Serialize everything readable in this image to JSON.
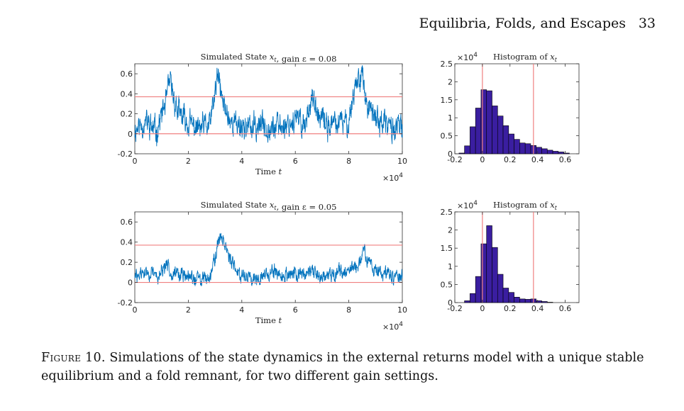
{
  "header": {
    "running_title": "Equilibria, Folds, and Escapes",
    "page_number": "33"
  },
  "caption": {
    "label": "Figure 10.",
    "text": "Simulations of the state dynamics in the external returns model with a unique stable equilibrium and a fold remnant, for two different gain settings."
  },
  "colors": {
    "trace": "#0072BD",
    "reference": "#F08080",
    "hist_fill": "#3A1EA0",
    "axes": "#333333"
  },
  "chart_data": [
    {
      "type": "line",
      "title": "Simulated State x_t, gain ε = 0.08",
      "xlabel": "Time t",
      "x_exponent": "×10^4",
      "xlim": [
        0,
        10
      ],
      "ylim": [
        -0.2,
        0.7
      ],
      "xticks": [
        "0",
        "2",
        "4",
        "6",
        "8",
        "10"
      ],
      "yticks": [
        "-0.2",
        "0",
        "0.2",
        "0.4",
        "0.6"
      ],
      "reference_lines_y": [
        0.0,
        0.37
      ],
      "series": [
        {
          "name": "x_t",
          "x": [
            0,
            0.4,
            0.8,
            1.2,
            1.3,
            1.6,
            2.0,
            2.4,
            2.8,
            3.0,
            3.1,
            3.3,
            3.6,
            4.0,
            4.4,
            4.8,
            5.2,
            5.6,
            6.0,
            6.4,
            6.6,
            6.8,
            7.2,
            7.6,
            8.0,
            8.2,
            8.5,
            8.6,
            8.8,
            9.2,
            9.6,
            10.0
          ],
          "values": [
            0.05,
            0.12,
            0.02,
            0.35,
            0.52,
            0.22,
            0.1,
            0.05,
            0.08,
            0.4,
            0.58,
            0.3,
            0.12,
            0.08,
            0.05,
            0.1,
            0.06,
            0.09,
            0.14,
            0.1,
            0.4,
            0.18,
            0.08,
            0.1,
            0.12,
            0.45,
            0.65,
            0.35,
            0.2,
            0.12,
            0.06,
            0.05
          ],
          "noise_amplitude": 0.12
        }
      ]
    },
    {
      "type": "bar",
      "title": "Histogram of x_t",
      "y_exponent": "×10^4",
      "xlim": [
        -0.2,
        0.7
      ],
      "ylim": [
        0,
        2.5
      ],
      "xticks": [
        "-0.2",
        "0",
        "0.2",
        "0.4",
        "0.6"
      ],
      "yticks": [
        "0",
        "0.5",
        "1",
        "1.5",
        "2",
        "2.5"
      ],
      "reference_lines_x": [
        0.0,
        0.37
      ],
      "bin_edges": [
        -0.17,
        -0.13,
        -0.09,
        -0.05,
        -0.01,
        0.03,
        0.07,
        0.11,
        0.15,
        0.19,
        0.23,
        0.27,
        0.31,
        0.35,
        0.39,
        0.43,
        0.47,
        0.51,
        0.55,
        0.59,
        0.63
      ],
      "values": [
        0.02,
        0.22,
        0.75,
        1.27,
        1.78,
        1.75,
        1.33,
        1.05,
        0.78,
        0.55,
        0.4,
        0.3,
        0.28,
        0.23,
        0.18,
        0.14,
        0.1,
        0.07,
        0.05,
        0.02
      ]
    },
    {
      "type": "line",
      "title": "Simulated State x_t, gain ε = 0.05",
      "xlabel": "Time t",
      "x_exponent": "×10^4",
      "xlim": [
        0,
        10
      ],
      "ylim": [
        -0.2,
        0.7
      ],
      "xticks": [
        "0",
        "2",
        "4",
        "6",
        "8",
        "10"
      ],
      "yticks": [
        "-0.2",
        "0",
        "0.2",
        "0.4",
        "0.6"
      ],
      "reference_lines_y": [
        0.0,
        0.37
      ],
      "series": [
        {
          "name": "x_t",
          "x": [
            0,
            0.4,
            0.8,
            1.2,
            1.6,
            2.0,
            2.4,
            2.8,
            3.0,
            3.2,
            3.4,
            3.6,
            4.0,
            4.4,
            4.8,
            5.2,
            5.6,
            6.0,
            6.4,
            6.8,
            7.2,
            7.6,
            8.0,
            8.4,
            8.55,
            8.7,
            9.0,
            9.4,
            10.0
          ],
          "values": [
            0.05,
            0.1,
            0.06,
            0.15,
            0.08,
            0.05,
            0.03,
            0.06,
            0.25,
            0.48,
            0.38,
            0.18,
            0.08,
            0.05,
            0.08,
            0.1,
            0.06,
            0.08,
            0.1,
            0.07,
            0.08,
            0.1,
            0.12,
            0.18,
            0.36,
            0.22,
            0.1,
            0.08,
            0.04
          ],
          "noise_amplitude": 0.07
        }
      ]
    },
    {
      "type": "bar",
      "title": "Histogram of x_t",
      "y_exponent": "×10^4",
      "xlim": [
        -0.2,
        0.7
      ],
      "ylim": [
        0,
        2.5
      ],
      "xticks": [
        "-0.2",
        "0",
        "0.2",
        "0.4",
        "0.6"
      ],
      "yticks": [
        "0",
        "0.5",
        "1",
        "1.5",
        "2",
        "2.5"
      ],
      "reference_lines_x": [
        0.0,
        0.37
      ],
      "bin_edges": [
        -0.13,
        -0.09,
        -0.05,
        -0.01,
        0.03,
        0.07,
        0.11,
        0.15,
        0.19,
        0.23,
        0.27,
        0.31,
        0.35,
        0.39,
        0.43,
        0.47,
        0.51
      ],
      "values": [
        0.05,
        0.25,
        0.72,
        1.62,
        2.12,
        1.52,
        0.78,
        0.4,
        0.28,
        0.15,
        0.1,
        0.09,
        0.1,
        0.05,
        0.03,
        0.01
      ]
    }
  ]
}
